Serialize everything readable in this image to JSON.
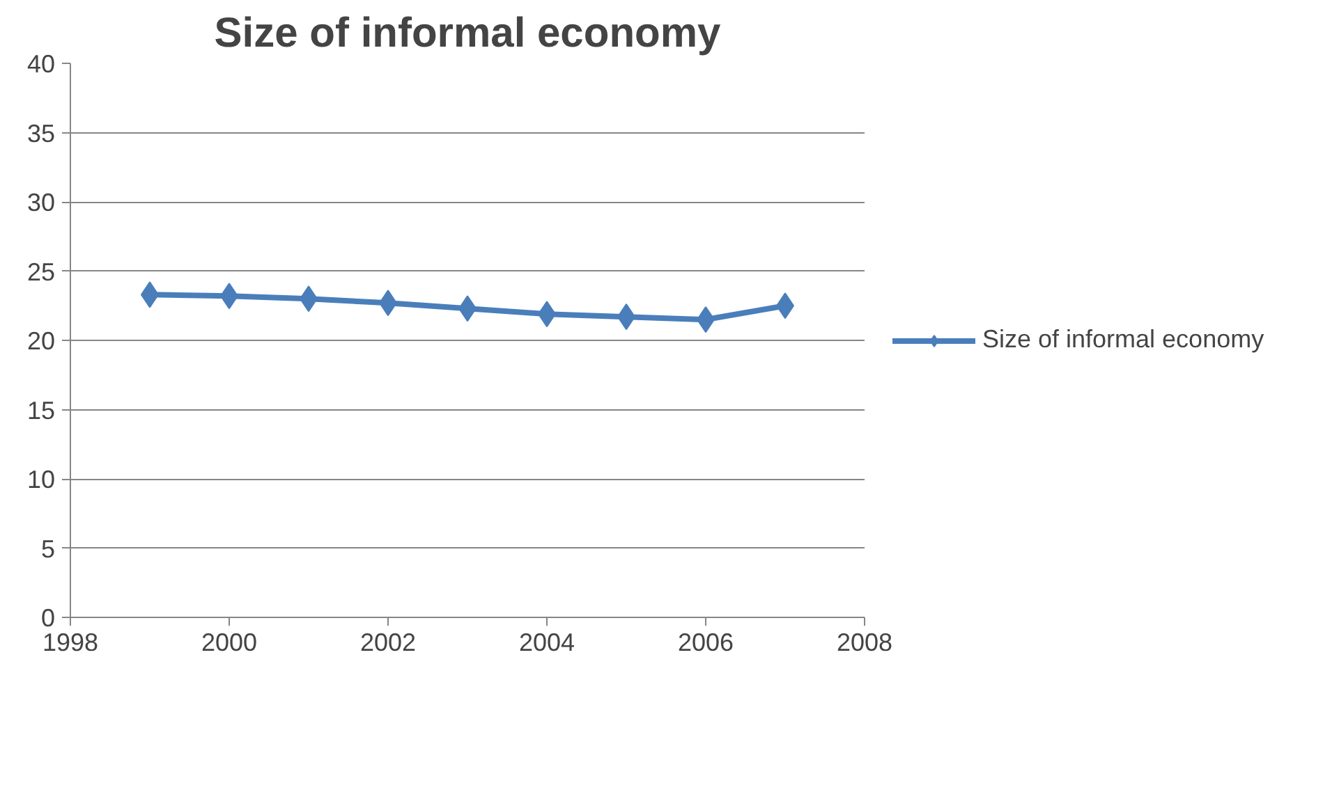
{
  "chart_data": {
    "type": "line",
    "title": "Size of informal economy",
    "x": [
      1999,
      2000,
      2001,
      2002,
      2003,
      2004,
      2005,
      2006,
      2007
    ],
    "series": [
      {
        "name": "Size of informal economy",
        "color": "#4a7ebb",
        "values": [
          23.3,
          23.2,
          23.0,
          22.7,
          22.3,
          21.9,
          21.7,
          21.5,
          22.5
        ]
      }
    ],
    "xlim": [
      1998,
      2008
    ],
    "xticks": [
      1998,
      2000,
      2002,
      2004,
      2006,
      2008
    ],
    "ylim": [
      0,
      40
    ],
    "yticks": [
      0,
      5,
      10,
      15,
      20,
      25,
      30,
      35,
      40
    ],
    "grid": "y",
    "legend": "right",
    "marker": "diamond",
    "line_style": "solid"
  }
}
